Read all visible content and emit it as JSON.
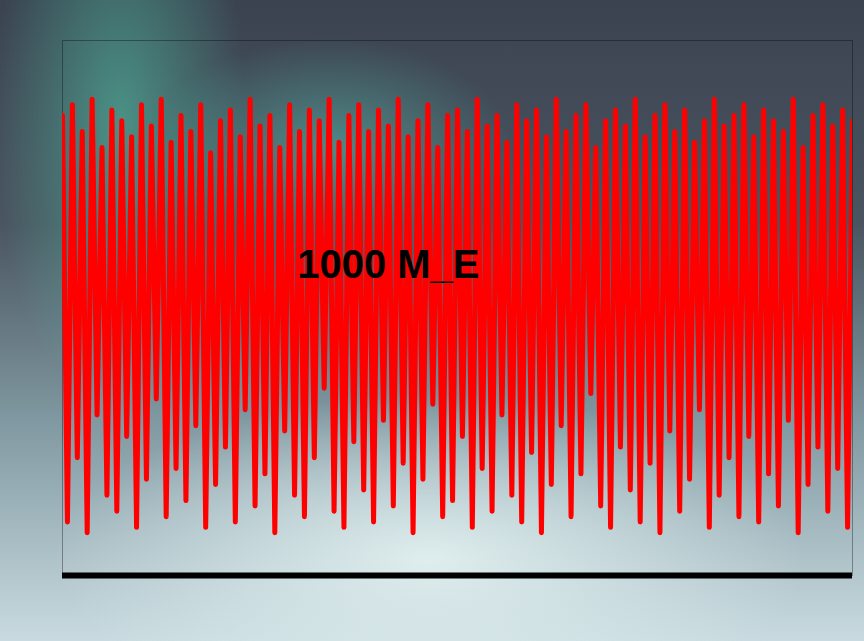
{
  "chart_data": {
    "type": "line",
    "color": "#ff0000",
    "xlim": [
      0,
      160
    ],
    "ylim": [
      0,
      1
    ],
    "tick_labels": false,
    "annotations": [
      {
        "text": "1000 M_E",
        "x": 66,
        "y": 0.58
      }
    ],
    "values": [
      0.86,
      0.1,
      0.88,
      0.22,
      0.83,
      0.08,
      0.89,
      0.3,
      0.8,
      0.15,
      0.87,
      0.12,
      0.85,
      0.26,
      0.82,
      0.09,
      0.88,
      0.18,
      0.84,
      0.33,
      0.89,
      0.11,
      0.81,
      0.2,
      0.86,
      0.14,
      0.83,
      0.28,
      0.88,
      0.09,
      0.79,
      0.17,
      0.85,
      0.24,
      0.87,
      0.1,
      0.82,
      0.31,
      0.89,
      0.13,
      0.84,
      0.19,
      0.86,
      0.08,
      0.8,
      0.27,
      0.88,
      0.15,
      0.83,
      0.11,
      0.87,
      0.22,
      0.85,
      0.35,
      0.89,
      0.12,
      0.81,
      0.09,
      0.86,
      0.25,
      0.88,
      0.16,
      0.83,
      0.1,
      0.87,
      0.29,
      0.84,
      0.13,
      0.89,
      0.21,
      0.82,
      0.08,
      0.85,
      0.18,
      0.88,
      0.32,
      0.8,
      0.11,
      0.86,
      0.14,
      0.87,
      0.26,
      0.83,
      0.09,
      0.89,
      0.2,
      0.84,
      0.12,
      0.86,
      0.3,
      0.81,
      0.15,
      0.88,
      0.1,
      0.85,
      0.23,
      0.87,
      0.08,
      0.82,
      0.17,
      0.89,
      0.28,
      0.83,
      0.11,
      0.86,
      0.19,
      0.88,
      0.34,
      0.8,
      0.13,
      0.85,
      0.09,
      0.87,
      0.24,
      0.84,
      0.16,
      0.89,
      0.1,
      0.82,
      0.21,
      0.86,
      0.08,
      0.88,
      0.27,
      0.83,
      0.12,
      0.87,
      0.18,
      0.81,
      0.31,
      0.85,
      0.09,
      0.89,
      0.15,
      0.84,
      0.22,
      0.86,
      0.11,
      0.88,
      0.26,
      0.82,
      0.1,
      0.87,
      0.19,
      0.85,
      0.13,
      0.83,
      0.29,
      0.89,
      0.08,
      0.8,
      0.17,
      0.86,
      0.24,
      0.88,
      0.12,
      0.84,
      0.2,
      0.87,
      0.09,
      0.85
    ]
  }
}
